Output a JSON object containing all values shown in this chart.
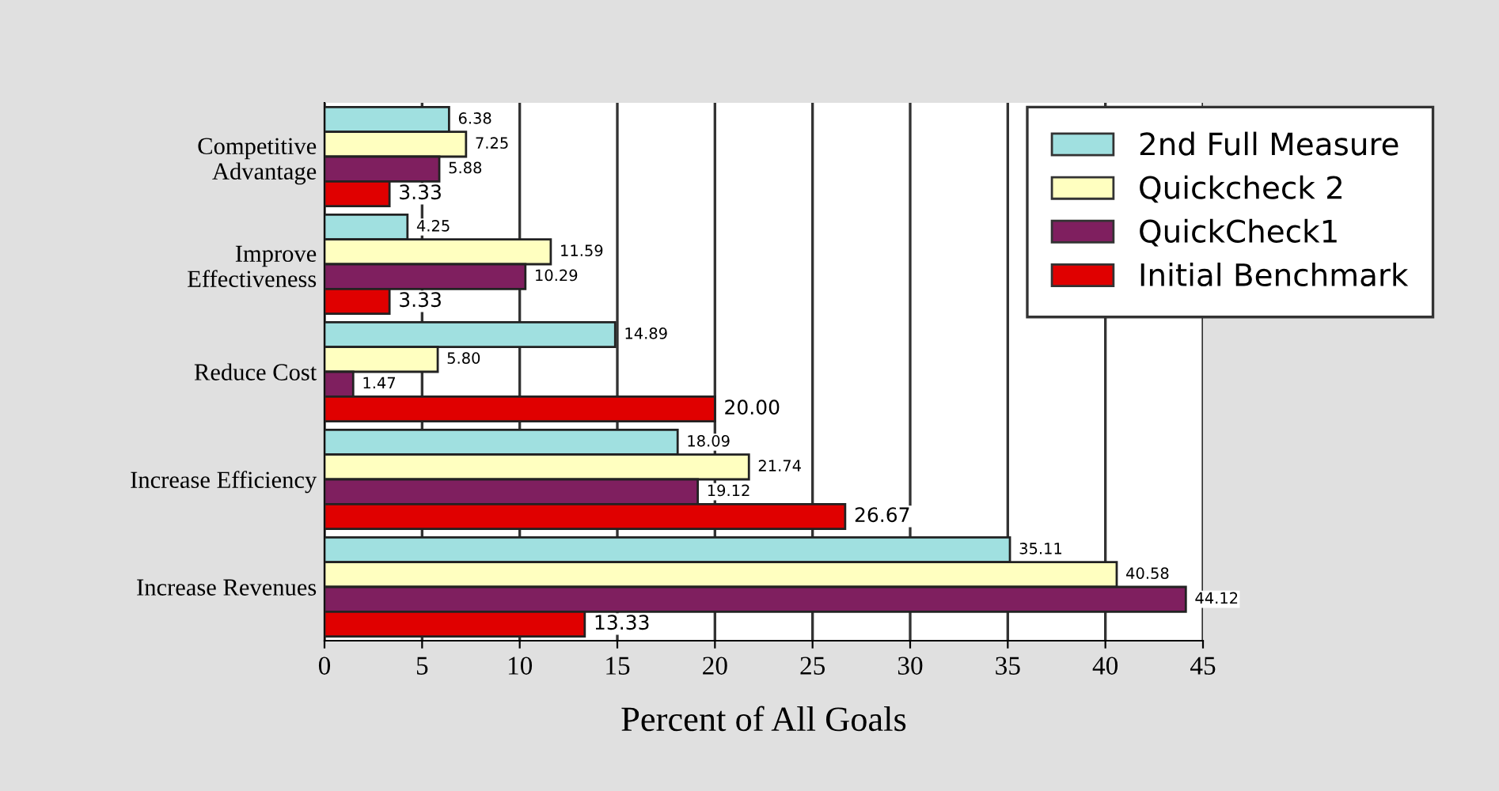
{
  "chart_data": {
    "type": "bar",
    "orientation": "horizontal",
    "xlabel": "Percent of All Goals",
    "categories": [
      "Competitive\nAdvantage",
      "Improve\nEffectiveness",
      "Reduce Cost",
      "Increase Efficiency",
      "Increase Revenues"
    ],
    "series": [
      {
        "name": "2nd Full Measure",
        "color": "#a0e0e0",
        "values": [
          6.38,
          4.25,
          14.89,
          18.09,
          35.11
        ]
      },
      {
        "name": "Quickcheck 2",
        "color": "#ffffc0",
        "values": [
          7.25,
          11.59,
          5.8,
          21.74,
          40.58
        ]
      },
      {
        "name": "QuickCheck1",
        "color": "#7f1f5f",
        "values": [
          5.88,
          10.29,
          1.47,
          19.12,
          44.12
        ]
      },
      {
        "name": "Initial Benchmark",
        "color": "#e00000",
        "values": [
          3.33,
          3.33,
          20.0,
          26.67,
          13.33
        ]
      }
    ],
    "value_labels": [
      [
        "6.38",
        "4.25",
        "14.89",
        "18.09",
        "35.11"
      ],
      [
        "7.25",
        "11.59",
        "5.80",
        "21.74",
        "40.58"
      ],
      [
        "5.88",
        "10.29",
        "1.47",
        "19.12",
        "44.12"
      ],
      [
        "3.33",
        "3.33",
        "20.00",
        "26.67",
        "13.33"
      ]
    ],
    "xlim": [
      0,
      45
    ],
    "xticks": [
      0,
      5,
      10,
      15,
      20,
      25,
      30,
      35,
      40,
      45
    ],
    "grid": "x",
    "legend": "top right"
  }
}
